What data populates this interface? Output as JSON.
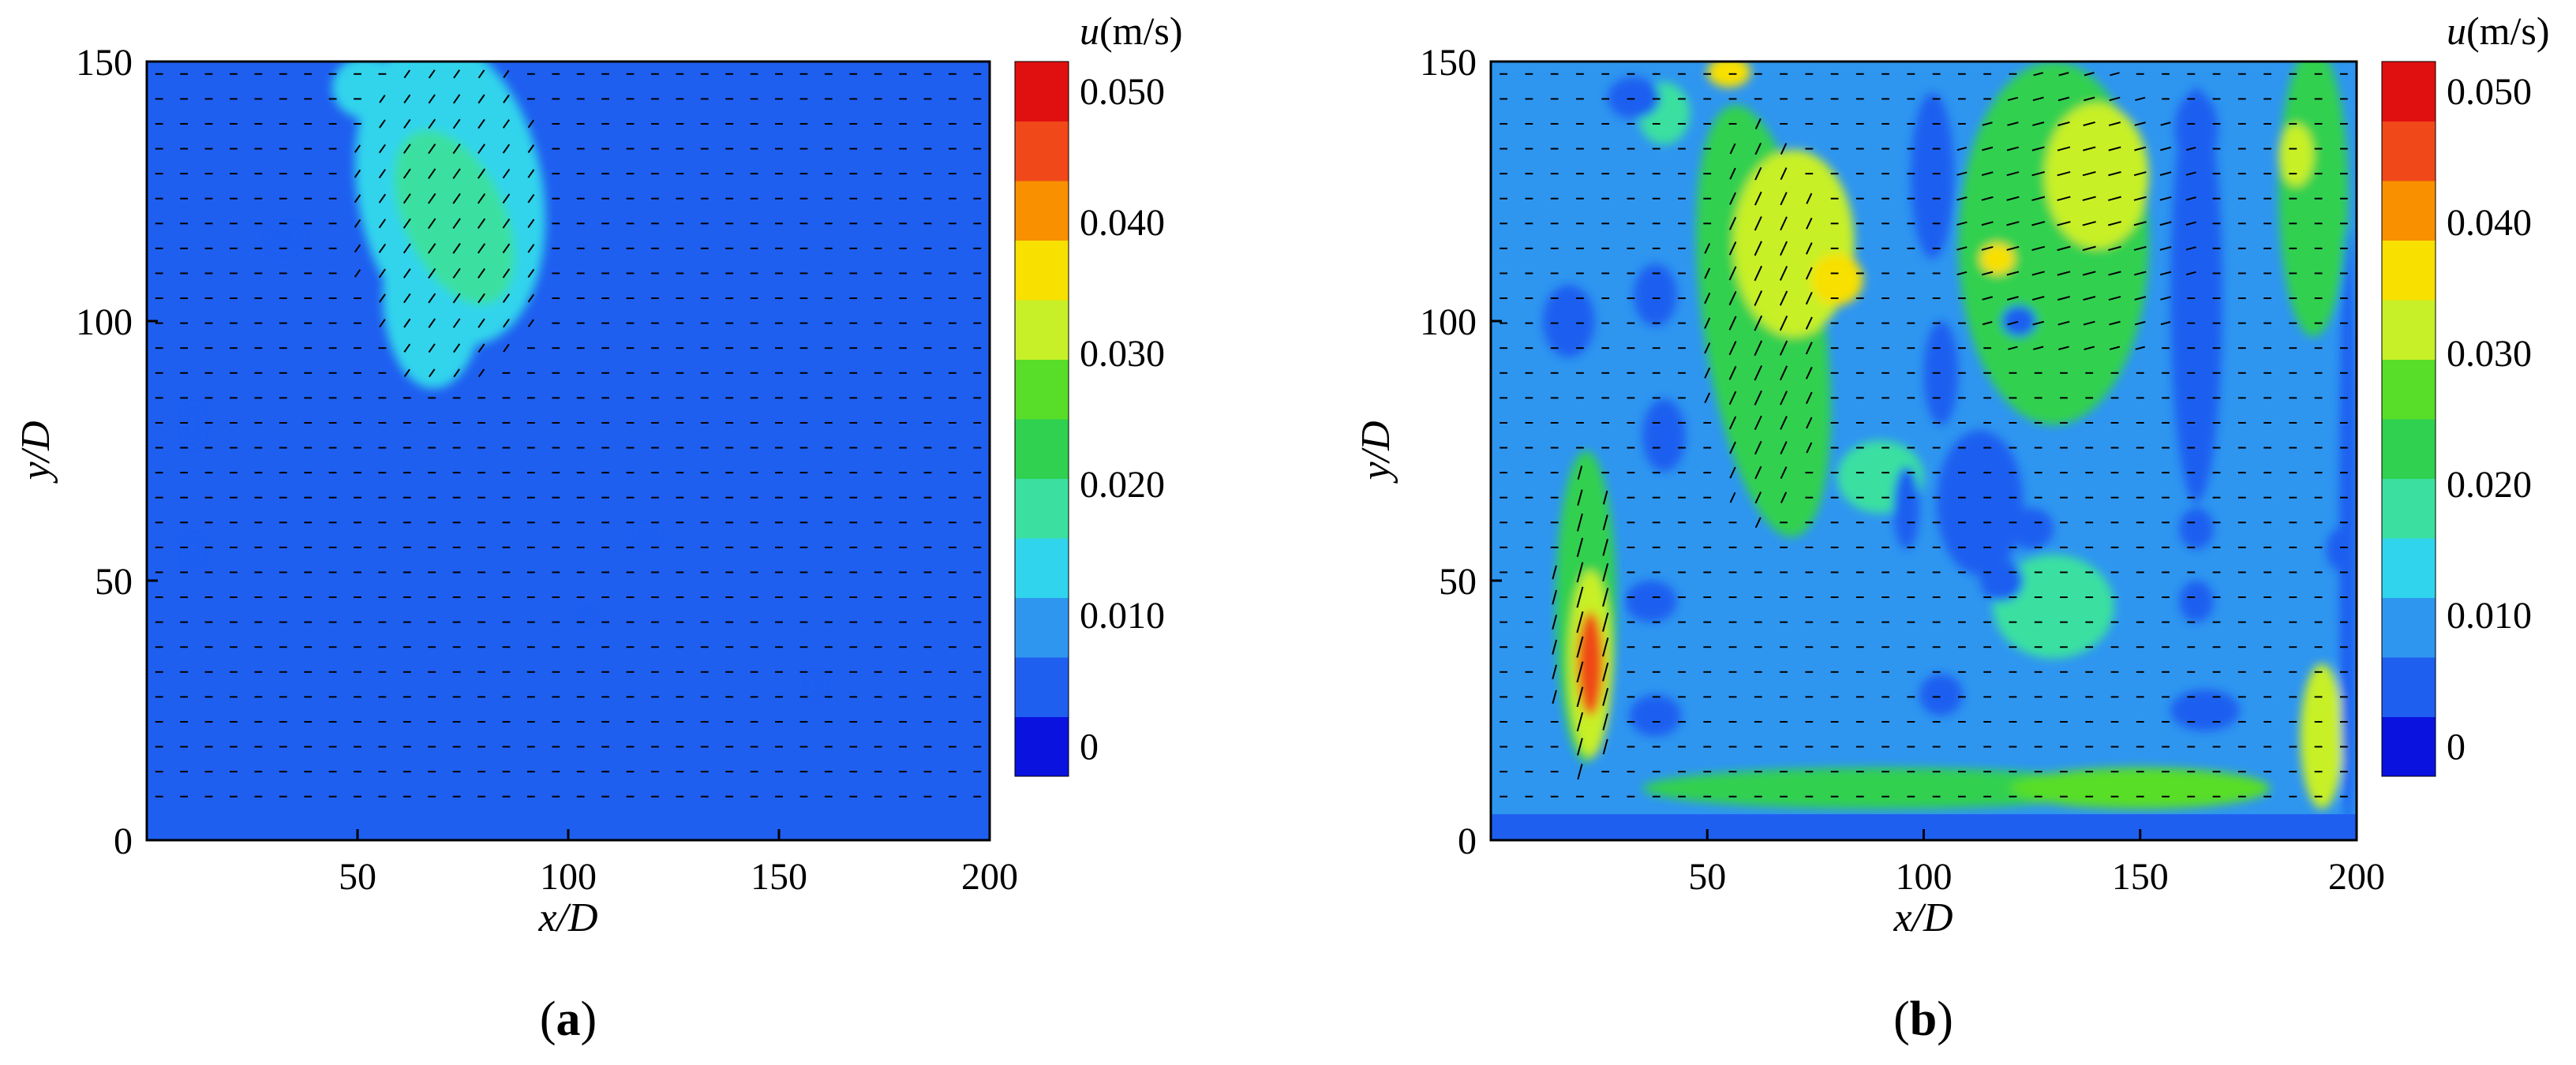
{
  "chart_data": [
    {
      "type": "heatmap",
      "panel_label": "a",
      "xlabel": "x/D",
      "ylabel": "y/D",
      "xlim": [
        0,
        200
      ],
      "ylim": [
        0,
        150
      ],
      "x_ticks": [
        50,
        100,
        150,
        200
      ],
      "y_ticks": [
        0,
        50,
        100,
        150
      ],
      "colorbar": {
        "title_symbol": "u",
        "title_unit": "(m/s)",
        "levels": [
          0,
          0.005,
          0.01,
          0.015,
          0.02,
          0.025,
          0.03,
          0.035,
          0.04,
          0.045,
          0.05
        ],
        "tick_labels": [
          "0.050",
          "0.040",
          "0.030",
          "0.020",
          "0.010",
          "0"
        ],
        "colors": [
          "#0a12e0",
          "#1f5ff0",
          "#2f96f0",
          "#30d4ec",
          "#3be0a0",
          "#30d050",
          "#58de28",
          "#c8f028",
          "#f8e000",
          "#f89000",
          "#f04818",
          "#e01010"
        ]
      },
      "background_level": 0.003,
      "regions": [
        {
          "kind": "band_bottom",
          "value": 0.001,
          "y_max": 5
        },
        {
          "kind": "band_left",
          "value": 0.001,
          "x_max": 1
        },
        {
          "kind": "blob",
          "cx": 72,
          "cy": 125,
          "rx": 22,
          "ry": 30,
          "angle": -10,
          "value": 0.012
        },
        {
          "kind": "blob",
          "cx": 68,
          "cy": 105,
          "rx": 12,
          "ry": 18,
          "angle": 0,
          "value": 0.012
        },
        {
          "kind": "blob",
          "cx": 52,
          "cy": 145,
          "rx": 8,
          "ry": 6,
          "angle": 0,
          "value": 0.012
        },
        {
          "kind": "blob",
          "cx": 73,
          "cy": 120,
          "rx": 12,
          "ry": 18,
          "angle": -25,
          "value": 0.018
        },
        {
          "kind": "blob",
          "cx": 33,
          "cy": 116,
          "rx": 4,
          "ry": 2.5,
          "angle": 0,
          "value": 0.001
        },
        {
          "kind": "blob",
          "cx": 11,
          "cy": 80,
          "rx": 2,
          "ry": 4,
          "angle": 0,
          "value": 0.001
        },
        {
          "kind": "blob",
          "cx": 11,
          "cy": 56,
          "rx": 2,
          "ry": 2.5,
          "angle": 0,
          "value": 0.001
        },
        {
          "kind": "blob",
          "cx": 119,
          "cy": 59,
          "rx": 2.5,
          "ry": 1.5,
          "angle": 0,
          "value": 0.001
        },
        {
          "kind": "blob",
          "cx": 104,
          "cy": 43,
          "rx": 1.2,
          "ry": 1,
          "angle": 0,
          "value": 0.001
        },
        {
          "kind": "blob",
          "cx": 159,
          "cy": 30,
          "rx": 1.5,
          "ry": 2,
          "angle": 0,
          "value": 0.001
        }
      ],
      "vector_zones": [
        {
          "cx": 72,
          "cy": 120,
          "rx": 24,
          "ry": 34,
          "angle_deg": 55,
          "speed": 0.012
        }
      ]
    },
    {
      "type": "heatmap",
      "panel_label": "b",
      "xlabel": "x/D",
      "ylabel": "y/D",
      "xlim": [
        0,
        200
      ],
      "ylim": [
        0,
        150
      ],
      "x_ticks": [
        50,
        100,
        150,
        200
      ],
      "y_ticks": [
        0,
        50,
        100,
        150
      ],
      "colorbar": {
        "title_symbol": "u",
        "title_unit": "(m/s)",
        "levels": [
          0,
          0.005,
          0.01,
          0.015,
          0.02,
          0.025,
          0.03,
          0.035,
          0.04,
          0.045,
          0.05
        ],
        "tick_labels": [
          "0.050",
          "0.040",
          "0.030",
          "0.020",
          "0.010",
          "0"
        ],
        "colors": [
          "#0a12e0",
          "#1f5ff0",
          "#2f96f0",
          "#30d4ec",
          "#3be0a0",
          "#30d050",
          "#58de28",
          "#c8f028",
          "#f8e000",
          "#f89000",
          "#f04818",
          "#e01010"
        ]
      },
      "background_level": 0.008,
      "regions": [
        {
          "kind": "band_bottom",
          "value": 0.001,
          "y_max": 5
        },
        {
          "kind": "blob",
          "cx": 22,
          "cy": 45,
          "rx": 7,
          "ry": 30,
          "angle": 0,
          "value": 0.02
        },
        {
          "kind": "blob",
          "cx": 23,
          "cy": 34,
          "rx": 5,
          "ry": 18,
          "angle": 0,
          "value": 0.033
        },
        {
          "kind": "blob",
          "cx": 23,
          "cy": 34,
          "rx": 3,
          "ry": 10,
          "angle": 0,
          "value": 0.046
        },
        {
          "kind": "blob",
          "cx": 63,
          "cy": 100,
          "rx": 14,
          "ry": 42,
          "angle": -8,
          "value": 0.02
        },
        {
          "kind": "blob",
          "cx": 70,
          "cy": 115,
          "rx": 14,
          "ry": 18,
          "angle": 0,
          "value": 0.03
        },
        {
          "kind": "blob",
          "cx": 80,
          "cy": 108,
          "rx": 6,
          "ry": 5,
          "angle": 0,
          "value": 0.038
        },
        {
          "kind": "blob",
          "cx": 55,
          "cy": 148,
          "rx": 5,
          "ry": 3,
          "angle": 0,
          "value": 0.038
        },
        {
          "kind": "blob",
          "cx": 130,
          "cy": 115,
          "rx": 22,
          "ry": 35,
          "angle": 0,
          "value": 0.02
        },
        {
          "kind": "blob",
          "cx": 140,
          "cy": 128,
          "rx": 12,
          "ry": 14,
          "angle": 0,
          "value": 0.03
        },
        {
          "kind": "blob",
          "cx": 117,
          "cy": 112,
          "rx": 4,
          "ry": 3,
          "angle": 0,
          "value": 0.036
        },
        {
          "kind": "blob",
          "cx": 190,
          "cy": 125,
          "rx": 8,
          "ry": 28,
          "angle": 0,
          "value": 0.02
        },
        {
          "kind": "blob",
          "cx": 186,
          "cy": 132,
          "rx": 4,
          "ry": 6,
          "angle": 0,
          "value": 0.033
        },
        {
          "kind": "blob",
          "cx": 40,
          "cy": 140,
          "rx": 6,
          "ry": 6,
          "angle": 0,
          "value": 0.016
        },
        {
          "kind": "blob",
          "cx": 90,
          "cy": 10,
          "rx": 55,
          "ry": 4,
          "angle": 0,
          "value": 0.02
        },
        {
          "kind": "blob",
          "cx": 150,
          "cy": 10,
          "rx": 30,
          "ry": 4,
          "angle": 0,
          "value": 0.025
        },
        {
          "kind": "blob",
          "cx": 192,
          "cy": 20,
          "rx": 5,
          "ry": 14,
          "angle": 0,
          "value": 0.03
        },
        {
          "kind": "blob",
          "cx": 130,
          "cy": 45,
          "rx": 14,
          "ry": 10,
          "angle": 0,
          "value": 0.016
        },
        {
          "kind": "blob",
          "cx": 90,
          "cy": 70,
          "rx": 10,
          "ry": 7,
          "angle": 0,
          "value": 0.016
        },
        {
          "kind": "blob",
          "cx": 18,
          "cy": 100,
          "rx": 6,
          "ry": 7,
          "angle": 0,
          "value": 0.001
        },
        {
          "kind": "blob",
          "cx": 33,
          "cy": 143,
          "rx": 6,
          "ry": 4,
          "angle": 0,
          "value": 0.001
        },
        {
          "kind": "blob",
          "cx": 38,
          "cy": 105,
          "rx": 5,
          "ry": 6,
          "angle": 0,
          "value": 0.001
        },
        {
          "kind": "blob",
          "cx": 40,
          "cy": 78,
          "rx": 5,
          "ry": 7,
          "angle": 0,
          "value": 0.001
        },
        {
          "kind": "blob",
          "cx": 37,
          "cy": 46,
          "rx": 6,
          "ry": 4,
          "angle": 0,
          "value": 0.001
        },
        {
          "kind": "blob",
          "cx": 38,
          "cy": 24,
          "rx": 6,
          "ry": 4,
          "angle": 0,
          "value": 0.001
        },
        {
          "kind": "blob",
          "cx": 102,
          "cy": 128,
          "rx": 5,
          "ry": 16,
          "angle": 0,
          "value": 0.001
        },
        {
          "kind": "blob",
          "cx": 104,
          "cy": 90,
          "rx": 4,
          "ry": 10,
          "angle": 0,
          "value": 0.001
        },
        {
          "kind": "blob",
          "cx": 96,
          "cy": 64,
          "rx": 3,
          "ry": 8,
          "angle": 0,
          "value": 0.001
        },
        {
          "kind": "blob",
          "cx": 104,
          "cy": 28,
          "rx": 5,
          "ry": 4,
          "angle": 0,
          "value": 0.001
        },
        {
          "kind": "blob",
          "cx": 122,
          "cy": 100,
          "rx": 4,
          "ry": 3,
          "angle": 0,
          "value": 0.001
        },
        {
          "kind": "blob",
          "cx": 113,
          "cy": 65,
          "rx": 10,
          "ry": 14,
          "angle": 0,
          "value": 0.003
        },
        {
          "kind": "blob",
          "cx": 125,
          "cy": 60,
          "rx": 5,
          "ry": 4,
          "angle": 0,
          "value": 0.001
        },
        {
          "kind": "blob",
          "cx": 118,
          "cy": 50,
          "rx": 5,
          "ry": 4,
          "angle": 0,
          "value": 0.001
        },
        {
          "kind": "blob",
          "cx": 163,
          "cy": 105,
          "rx": 6,
          "ry": 40,
          "angle": 0,
          "value": 0.003
        },
        {
          "kind": "blob",
          "cx": 163,
          "cy": 137,
          "rx": 5,
          "ry": 7,
          "angle": 0,
          "value": 0.001
        },
        {
          "kind": "blob",
          "cx": 163,
          "cy": 116,
          "rx": 4,
          "ry": 5,
          "angle": 0,
          "value": 0.001
        },
        {
          "kind": "blob",
          "cx": 163,
          "cy": 80,
          "rx": 4,
          "ry": 5,
          "angle": 0,
          "value": 0.001
        },
        {
          "kind": "blob",
          "cx": 163,
          "cy": 60,
          "rx": 4,
          "ry": 4,
          "angle": 0,
          "value": 0.001
        },
        {
          "kind": "blob",
          "cx": 163,
          "cy": 46,
          "rx": 4,
          "ry": 4,
          "angle": 0,
          "value": 0.001
        },
        {
          "kind": "blob",
          "cx": 165,
          "cy": 25,
          "rx": 8,
          "ry": 4,
          "angle": 0,
          "value": 0.001
        },
        {
          "kind": "blob",
          "cx": 198,
          "cy": 60,
          "rx": 2,
          "ry": 58,
          "angle": 0,
          "value": 0.003
        },
        {
          "kind": "blob",
          "cx": 196,
          "cy": 56,
          "rx": 3,
          "ry": 4,
          "angle": 0,
          "value": 0.001
        }
      ],
      "vector_zones": [
        {
          "cx": 22,
          "cy": 40,
          "rx": 8,
          "ry": 32,
          "angle_deg": 75,
          "speed": 0.03
        },
        {
          "cx": 63,
          "cy": 100,
          "rx": 14,
          "ry": 40,
          "angle_deg": 65,
          "speed": 0.02
        },
        {
          "cx": 135,
          "cy": 120,
          "rx": 30,
          "ry": 30,
          "angle_deg": 15,
          "speed": 0.015
        }
      ]
    }
  ]
}
